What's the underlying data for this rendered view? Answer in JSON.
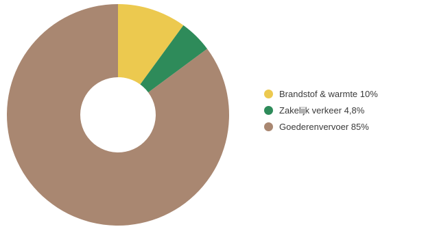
{
  "chart_data": {
    "type": "pie",
    "donut": true,
    "title": "",
    "categories": [
      "Brandstof & warmte 10%",
      "Zakelijk verkeer 4,8%",
      "Goederenvervoer 85%"
    ],
    "values": [
      10,
      4.8,
      85
    ],
    "colors": [
      "#ecc94f",
      "#2e8b5a",
      "#a98771"
    ],
    "legend_position": "right"
  }
}
